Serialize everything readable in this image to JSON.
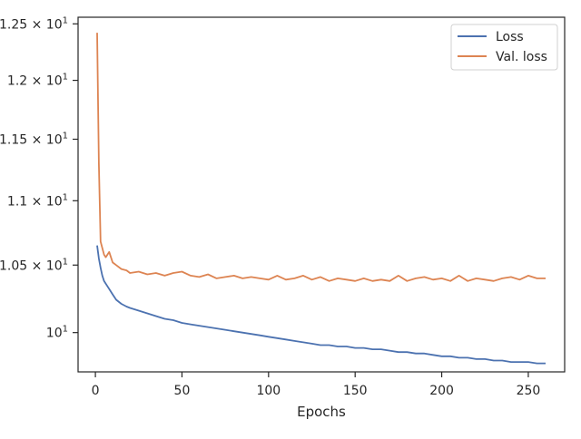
{
  "chart_data": {
    "type": "line",
    "title": "",
    "xlabel": "Epochs",
    "ylabel": "",
    "yscale": "log",
    "xlim": [
      -10,
      271
    ],
    "ylim": [
      9.72,
      12.56
    ],
    "grid": false,
    "legend_position": "top-right",
    "x_ticks": [
      {
        "value": 0,
        "label": "0"
      },
      {
        "value": 50,
        "label": "50"
      },
      {
        "value": 100,
        "label": "100"
      },
      {
        "value": 150,
        "label": "150"
      },
      {
        "value": 200,
        "label": "200"
      },
      {
        "value": 250,
        "label": "250"
      }
    ],
    "y_ticks": [
      {
        "value": 10.0,
        "mantissa": "10",
        "exponent": "1"
      },
      {
        "value": 10.5,
        "mantissa": "1.05 × 10",
        "exponent": "1"
      },
      {
        "value": 11.0,
        "mantissa": "1.1 × 10",
        "exponent": "1"
      },
      {
        "value": 11.5,
        "mantissa": "1.15 × 10",
        "exponent": "1"
      },
      {
        "value": 12.0,
        "mantissa": "1.2 × 10",
        "exponent": "1"
      },
      {
        "value": 12.5,
        "mantissa": "1.25 × 10",
        "exponent": "1"
      }
    ],
    "series": [
      {
        "name": "Loss",
        "color": "#4c72b0",
        "x": [
          1,
          2,
          3,
          4,
          5,
          6,
          7,
          8,
          10,
          12,
          15,
          18,
          20,
          25,
          30,
          35,
          40,
          45,
          50,
          55,
          60,
          65,
          70,
          75,
          80,
          85,
          90,
          95,
          100,
          105,
          110,
          115,
          120,
          125,
          130,
          135,
          140,
          145,
          150,
          155,
          160,
          165,
          170,
          175,
          180,
          185,
          190,
          195,
          200,
          205,
          210,
          215,
          220,
          225,
          230,
          235,
          240,
          245,
          250,
          255,
          260
        ],
        "values": [
          10.65,
          10.55,
          10.48,
          10.42,
          10.38,
          10.36,
          10.34,
          10.32,
          10.28,
          10.24,
          10.21,
          10.19,
          10.18,
          10.16,
          10.14,
          10.12,
          10.1,
          10.09,
          10.07,
          10.06,
          10.05,
          10.04,
          10.03,
          10.02,
          10.01,
          10.0,
          9.99,
          9.98,
          9.97,
          9.96,
          9.95,
          9.94,
          9.93,
          9.92,
          9.91,
          9.91,
          9.9,
          9.9,
          9.89,
          9.89,
          9.88,
          9.88,
          9.87,
          9.86,
          9.86,
          9.85,
          9.85,
          9.84,
          9.83,
          9.83,
          9.82,
          9.82,
          9.81,
          9.81,
          9.8,
          9.8,
          9.79,
          9.79,
          9.79,
          9.78,
          9.78
        ]
      },
      {
        "name": "Val. loss",
        "color": "#dd8452",
        "x": [
          1,
          2,
          3,
          4,
          5,
          6,
          8,
          10,
          12,
          15,
          18,
          20,
          25,
          30,
          35,
          40,
          45,
          50,
          55,
          60,
          65,
          70,
          75,
          80,
          85,
          90,
          95,
          100,
          105,
          110,
          115,
          120,
          125,
          130,
          135,
          140,
          145,
          150,
          155,
          160,
          165,
          170,
          175,
          180,
          185,
          190,
          195,
          200,
          205,
          210,
          215,
          220,
          225,
          230,
          235,
          240,
          245,
          250,
          255,
          260
        ],
        "values": [
          12.42,
          11.3,
          10.68,
          10.63,
          10.58,
          10.56,
          10.6,
          10.52,
          10.5,
          10.47,
          10.46,
          10.44,
          10.45,
          10.43,
          10.44,
          10.42,
          10.44,
          10.45,
          10.42,
          10.41,
          10.43,
          10.4,
          10.41,
          10.42,
          10.4,
          10.41,
          10.4,
          10.39,
          10.42,
          10.39,
          10.4,
          10.42,
          10.39,
          10.41,
          10.38,
          10.4,
          10.39,
          10.38,
          10.4,
          10.38,
          10.39,
          10.38,
          10.42,
          10.38,
          10.4,
          10.41,
          10.39,
          10.4,
          10.38,
          10.42,
          10.38,
          10.4,
          10.39,
          10.38,
          10.4,
          10.41,
          10.39,
          10.42,
          10.4,
          10.4
        ]
      }
    ]
  }
}
